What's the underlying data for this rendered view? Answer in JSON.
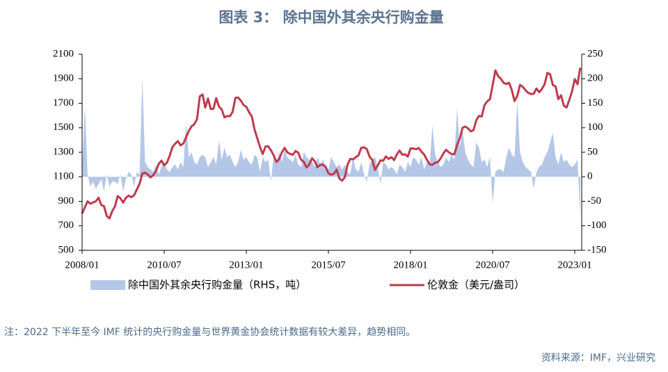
{
  "chart_data": {
    "type": "line-area-dual",
    "title": "图表 3：  除中国外其余央行购金量",
    "note": "注：2022 下半年至今 IMF 统计的央行购金量与世界黄金协会统计数据有较大差异，趋势相同。",
    "source": "资料来源：IMF，兴业研究",
    "x": [
      "2008/01",
      "2008/02",
      "2008/03",
      "2008/04",
      "2008/05",
      "2008/06",
      "2008/07",
      "2008/08",
      "2008/09",
      "2008/10",
      "2008/11",
      "2008/12",
      "2009/01",
      "2009/02",
      "2009/03",
      "2009/04",
      "2009/05",
      "2009/06",
      "2009/07",
      "2009/08",
      "2009/09",
      "2009/10",
      "2009/11",
      "2009/12",
      "2010/01",
      "2010/02",
      "2010/03",
      "2010/04",
      "2010/05",
      "2010/06",
      "2010/07",
      "2010/08",
      "2010/09",
      "2010/10",
      "2010/11",
      "2010/12",
      "2011/01",
      "2011/02",
      "2011/03",
      "2011/04",
      "2011/05",
      "2011/06",
      "2011/07",
      "2011/08",
      "2011/09",
      "2011/10",
      "2011/11",
      "2011/12",
      "2012/01",
      "2012/02",
      "2012/03",
      "2012/04",
      "2012/05",
      "2012/06",
      "2012/07",
      "2012/08",
      "2012/09",
      "2012/10",
      "2012/11",
      "2012/12",
      "2013/01",
      "2013/02",
      "2013/03",
      "2013/04",
      "2013/05",
      "2013/06",
      "2013/07",
      "2013/08",
      "2013/09",
      "2013/10",
      "2013/11",
      "2013/12",
      "2014/01",
      "2014/02",
      "2014/03",
      "2014/04",
      "2014/05",
      "2014/06",
      "2014/07",
      "2014/08",
      "2014/09",
      "2014/10",
      "2014/11",
      "2014/12",
      "2015/01",
      "2015/02",
      "2015/03",
      "2015/04",
      "2015/05",
      "2015/06",
      "2015/07",
      "2015/08",
      "2015/09",
      "2015/10",
      "2015/11",
      "2015/12",
      "2016/01",
      "2016/02",
      "2016/03",
      "2016/04",
      "2016/05",
      "2016/06",
      "2016/07",
      "2016/08",
      "2016/09",
      "2016/10",
      "2016/11",
      "2016/12",
      "2017/01",
      "2017/02",
      "2017/03",
      "2017/04",
      "2017/05",
      "2017/06",
      "2017/07",
      "2017/08",
      "2017/09",
      "2017/10",
      "2017/11",
      "2017/12",
      "2018/01",
      "2018/02",
      "2018/03",
      "2018/04",
      "2018/05",
      "2018/06",
      "2018/07",
      "2018/08",
      "2018/09",
      "2018/10",
      "2018/11",
      "2018/12",
      "2019/01",
      "2019/02",
      "2019/03",
      "2019/04",
      "2019/05",
      "2019/06",
      "2019/07",
      "2019/08",
      "2019/09",
      "2019/10",
      "2019/11",
      "2019/12",
      "2020/01",
      "2020/02",
      "2020/03",
      "2020/04",
      "2020/05",
      "2020/06",
      "2020/07",
      "2020/08",
      "2020/09",
      "2020/10",
      "2020/11",
      "2020/12",
      "2021/01",
      "2021/02",
      "2021/03",
      "2021/04",
      "2021/05",
      "2021/06",
      "2021/07",
      "2021/08",
      "2021/09",
      "2021/10",
      "2021/11",
      "2021/12",
      "2022/01",
      "2022/02",
      "2022/03",
      "2022/04",
      "2022/05",
      "2022/06",
      "2022/07",
      "2022/08",
      "2022/09",
      "2022/10",
      "2022/11",
      "2022/12",
      "2023/01",
      "2023/02",
      "2023/03"
    ],
    "series": [
      {
        "name": "除中国外其余央行购金量（RHS，吨）",
        "type": "area",
        "axis": "y2",
        "color": "#b4c7e7",
        "values": [
          10,
          145,
          5,
          -20,
          -10,
          -25,
          -15,
          -5,
          -30,
          5,
          -20,
          -10,
          -10,
          -15,
          5,
          -30,
          -5,
          10,
          5,
          -20,
          10,
          5,
          200,
          30,
          20,
          15,
          10,
          25,
          5,
          20,
          30,
          15,
          10,
          20,
          25,
          15,
          30,
          20,
          110,
          40,
          50,
          30,
          25,
          40,
          45,
          40,
          20,
          30,
          40,
          25,
          75,
          35,
          60,
          40,
          45,
          30,
          20,
          30,
          55,
          35,
          40,
          30,
          25,
          45,
          40,
          10,
          40,
          30,
          35,
          -10,
          45,
          30,
          50,
          30,
          55,
          40,
          35,
          30,
          45,
          25,
          20,
          50,
          40,
          35,
          30,
          20,
          40,
          25,
          35,
          20,
          15,
          40,
          30,
          20,
          25,
          15,
          25,
          10,
          5,
          40,
          15,
          10,
          30,
          5,
          -10,
          25,
          35,
          40,
          20,
          -15,
          30,
          25,
          15,
          20,
          15,
          5,
          25,
          20,
          10,
          30,
          20,
          40,
          35,
          25,
          40,
          15,
          30,
          25,
          105,
          45,
          30,
          20,
          25,
          40,
          30,
          45,
          35,
          140,
          60,
          95,
          50,
          35,
          25,
          20,
          70,
          60,
          30,
          35,
          20,
          40,
          -55,
          10,
          15,
          15,
          10,
          40,
          60,
          45,
          40,
          155,
          50,
          30,
          20,
          15,
          10,
          -25,
          10,
          20,
          25,
          40,
          50,
          70,
          90,
          40,
          25,
          50,
          30,
          35,
          25,
          20,
          25,
          35,
          -80
        ]
      },
      {
        "name": "伦敦金（美元/盎司）",
        "type": "line",
        "axis": "y",
        "color": "#c0394b",
        "values": [
          800,
          850,
          900,
          880,
          890,
          900,
          930,
          870,
          860,
          780,
          760,
          820,
          858,
          943,
          924,
          890,
          928,
          946,
          934,
          949,
          996,
          1043,
          1127,
          1134,
          1118,
          1095,
          1113,
          1148,
          1205,
          1232,
          1193,
          1215,
          1271,
          1343,
          1370,
          1391,
          1356,
          1372,
          1424,
          1474,
          1512,
          1529,
          1572,
          1756,
          1772,
          1665,
          1739,
          1652,
          1656,
          1742,
          1673,
          1650,
          1585,
          1596,
          1594,
          1630,
          1744,
          1747,
          1722,
          1685,
          1671,
          1627,
          1593,
          1487,
          1414,
          1343,
          1286,
          1347,
          1349,
          1316,
          1275,
          1221,
          1244,
          1300,
          1336,
          1299,
          1287,
          1279,
          1311,
          1296,
          1239,
          1222,
          1176,
          1200,
          1251,
          1227,
          1178,
          1198,
          1199,
          1181,
          1128,
          1117,
          1125,
          1159,
          1086,
          1068,
          1097,
          1200,
          1246,
          1242,
          1260,
          1276,
          1337,
          1340,
          1326,
          1266,
          1238,
          1157,
          1192,
          1234,
          1231,
          1266,
          1246,
          1260,
          1236,
          1283,
          1314,
          1280,
          1283,
          1265,
          1331,
          1331,
          1325,
          1335,
          1304,
          1281,
          1238,
          1202,
          1198,
          1215,
          1220,
          1250,
          1291,
          1320,
          1300,
          1286,
          1284,
          1359,
          1413,
          1500,
          1510,
          1495,
          1471,
          1480,
          1560,
          1597,
          1592,
          1683,
          1716,
          1732,
          1847,
          1968,
          1921,
          1900,
          1866,
          1858,
          1867,
          1808,
          1718,
          1760,
          1850,
          1834,
          1807,
          1785,
          1775,
          1777,
          1821,
          1790,
          1817,
          1856,
          1948,
          1937,
          1849,
          1837,
          1733,
          1765,
          1681,
          1665,
          1726,
          1797,
          1897,
          1855,
          1990
        ]
      }
    ],
    "xticks": [
      "2008/01",
      "2010/07",
      "2013/01",
      "2015/07",
      "2018/01",
      "2020/07",
      "2023/01"
    ],
    "ylim": [
      500,
      2100
    ],
    "yticks": [
      500,
      700,
      900,
      1100,
      1300,
      1500,
      1700,
      1900,
      2100
    ],
    "y2lim": [
      -150,
      250
    ],
    "y2ticks": [
      -150,
      -100,
      -50,
      0,
      50,
      100,
      150,
      200,
      250
    ]
  }
}
